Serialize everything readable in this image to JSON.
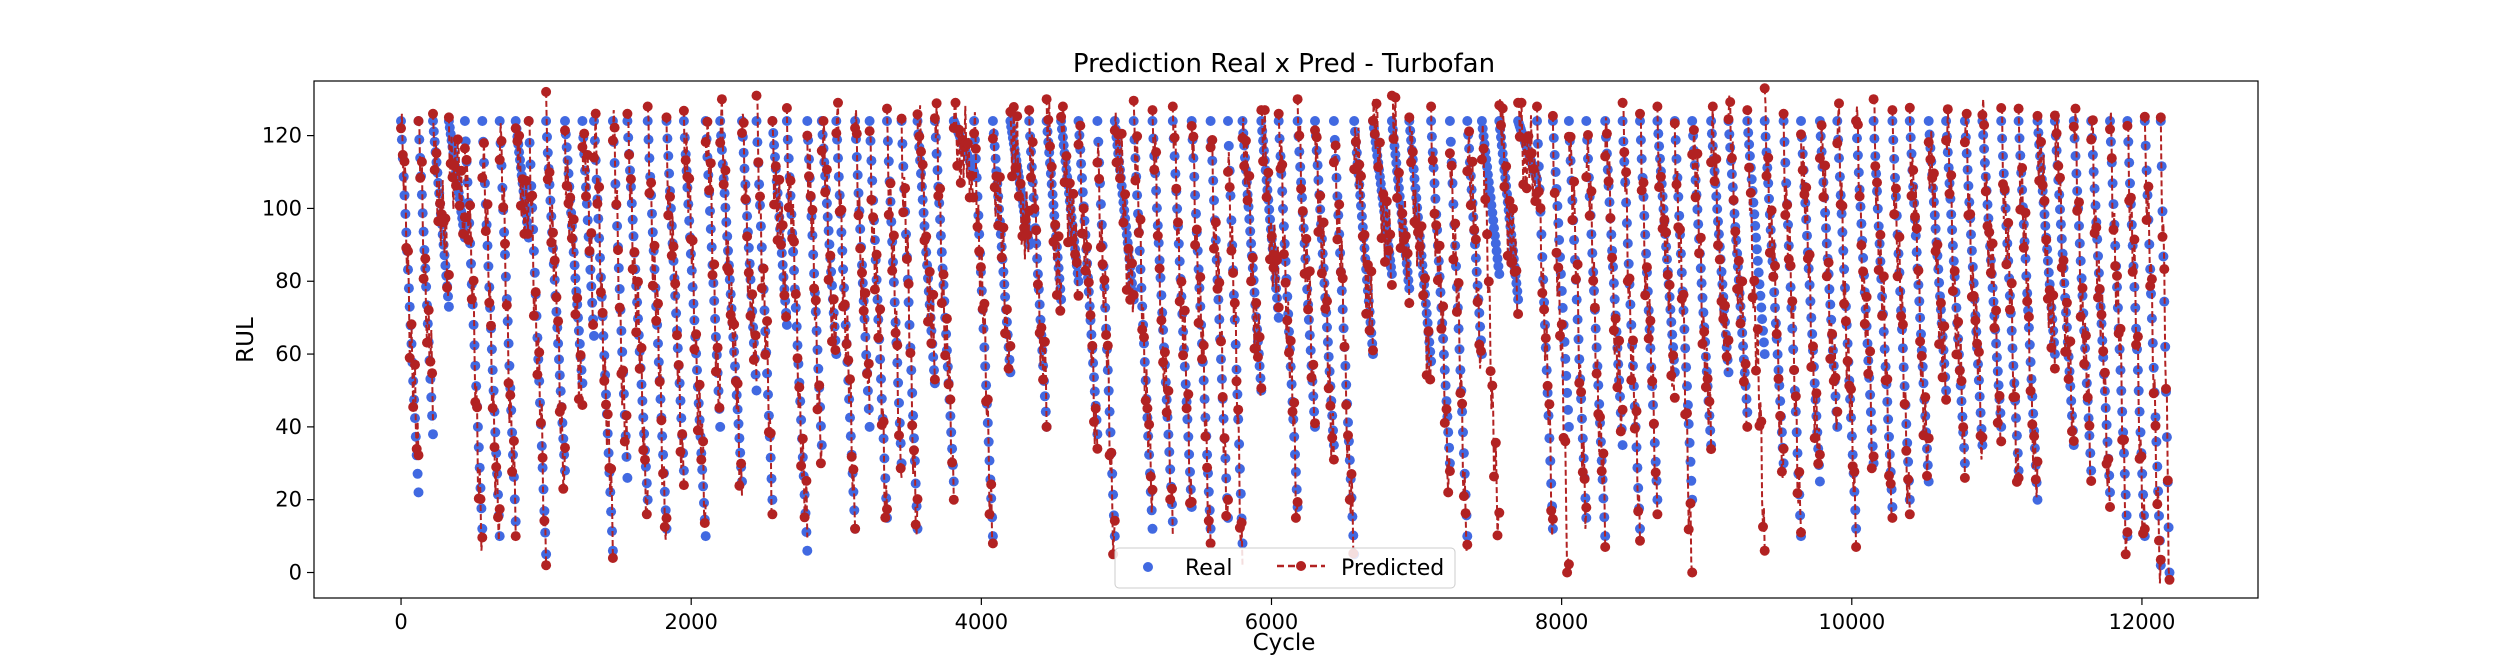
{
  "chart_data": {
    "type": "scatter",
    "title": "Prediction Real x Pred - Turbofan",
    "xlabel": "Cycle",
    "ylabel": "RUL",
    "xlim": [
      -600,
      12800
    ],
    "ylim": [
      -7,
      135
    ],
    "xticks": [
      0,
      2000,
      4000,
      6000,
      8000,
      10000,
      12000
    ],
    "yticks": [
      0,
      20,
      40,
      60,
      80,
      100,
      120
    ],
    "xtick_labels": [
      "0",
      "2000",
      "4000",
      "6000",
      "8000",
      "10000",
      "12000"
    ],
    "ytick_labels": [
      "0",
      "20",
      "40",
      "60",
      "80",
      "100",
      "120"
    ],
    "grid": false,
    "legend": {
      "placement": "bottom-center",
      "ncol": 2
    },
    "colors": {
      "Real": "#4169e1",
      "Predicted": "#b22222"
    },
    "series": [
      {
        "name": "Real",
        "style": "markers",
        "segments": [
          [
            0,
            124,
            120,
            22
          ],
          [
            120,
            124,
            220,
            38
          ],
          [
            220,
            124,
            330,
            73
          ],
          [
            330,
            124,
            440,
            92
          ],
          [
            440,
            124,
            560,
            12
          ],
          [
            560,
            124,
            680,
            10
          ],
          [
            680,
            124,
            790,
            14
          ],
          [
            790,
            124,
            880,
            92
          ],
          [
            880,
            124,
            1000,
            5
          ],
          [
            1000,
            124,
            1130,
            28
          ],
          [
            1130,
            124,
            1250,
            52
          ],
          [
            1250,
            124,
            1330,
            65
          ],
          [
            1330,
            124,
            1460,
            6
          ],
          [
            1460,
            124,
            1560,
            26
          ],
          [
            1560,
            124,
            1700,
            20
          ],
          [
            1700,
            124,
            1830,
            12
          ],
          [
            1830,
            124,
            1950,
            28
          ],
          [
            1950,
            124,
            2100,
            10
          ],
          [
            2100,
            124,
            2200,
            40
          ],
          [
            2200,
            124,
            2350,
            25
          ],
          [
            2350,
            124,
            2450,
            50
          ],
          [
            2450,
            124,
            2560,
            20
          ],
          [
            2560,
            124,
            2660,
            68
          ],
          [
            2660,
            124,
            2800,
            6
          ],
          [
            2800,
            124,
            2900,
            35
          ],
          [
            2900,
            124,
            3000,
            60
          ],
          [
            3000,
            124,
            3130,
            12
          ],
          [
            3130,
            124,
            3230,
            40
          ],
          [
            3230,
            124,
            3350,
            15
          ],
          [
            3350,
            124,
            3450,
            30
          ],
          [
            3450,
            124,
            3560,
            12
          ],
          [
            3560,
            124,
            3680,
            52
          ],
          [
            3680,
            124,
            3810,
            25
          ],
          [
            3810,
            124,
            3950,
            110
          ],
          [
            3950,
            124,
            4080,
            10
          ],
          [
            4080,
            124,
            4200,
            55
          ],
          [
            4200,
            124,
            4330,
            90
          ],
          [
            4330,
            124,
            4450,
            40
          ],
          [
            4450,
            124,
            4550,
            75
          ],
          [
            4550,
            124,
            4670,
            80
          ],
          [
            4670,
            124,
            4800,
            38
          ],
          [
            4800,
            124,
            4920,
            10
          ],
          [
            4920,
            124,
            5050,
            75
          ],
          [
            5050,
            124,
            5180,
            12
          ],
          [
            5180,
            124,
            5320,
            14
          ],
          [
            5320,
            124,
            5450,
            18
          ],
          [
            5450,
            124,
            5580,
            12
          ],
          [
            5580,
            124,
            5700,
            15
          ],
          [
            5700,
            124,
            5800,
            8
          ],
          [
            5800,
            124,
            5930,
            50
          ],
          [
            5930,
            124,
            6050,
            70
          ],
          [
            6050,
            124,
            6180,
            18
          ],
          [
            6180,
            124,
            6300,
            40
          ],
          [
            6300,
            124,
            6430,
            35
          ],
          [
            6430,
            124,
            6570,
            5
          ],
          [
            6570,
            124,
            6700,
            60
          ],
          [
            6700,
            124,
            6830,
            82
          ],
          [
            6830,
            124,
            6950,
            78
          ],
          [
            6950,
            124,
            7100,
            58
          ],
          [
            7100,
            124,
            7230,
            30
          ],
          [
            7230,
            124,
            7350,
            10
          ],
          [
            7350,
            124,
            7450,
            60
          ],
          [
            7450,
            124,
            7570,
            82
          ],
          [
            7570,
            124,
            7700,
            75
          ],
          [
            7700,
            124,
            7830,
            108
          ],
          [
            7830,
            124,
            7940,
            12
          ],
          [
            7940,
            124,
            8050,
            40
          ],
          [
            8050,
            124,
            8170,
            15
          ],
          [
            8170,
            124,
            8300,
            10
          ],
          [
            8300,
            124,
            8420,
            35
          ],
          [
            8420,
            124,
            8540,
            12
          ],
          [
            8540,
            124,
            8660,
            20
          ],
          [
            8660,
            124,
            8780,
            55
          ],
          [
            8780,
            124,
            8900,
            20
          ],
          [
            8900,
            124,
            9030,
            35
          ],
          [
            9030,
            124,
            9150,
            55
          ],
          [
            9150,
            124,
            9280,
            44
          ],
          [
            9280,
            124,
            9400,
            60
          ],
          [
            9400,
            124,
            9530,
            30
          ],
          [
            9530,
            124,
            9650,
            10
          ],
          [
            9650,
            124,
            9780,
            25
          ],
          [
            9780,
            124,
            9900,
            40
          ],
          [
            9900,
            124,
            10030,
            12
          ],
          [
            10030,
            124,
            10150,
            30
          ],
          [
            10150,
            124,
            10280,
            18
          ],
          [
            10280,
            124,
            10400,
            20
          ],
          [
            10400,
            124,
            10530,
            25
          ],
          [
            10530,
            124,
            10650,
            50
          ],
          [
            10650,
            124,
            10780,
            30
          ],
          [
            10780,
            124,
            10900,
            35
          ],
          [
            10900,
            124,
            11030,
            40
          ],
          [
            11030,
            124,
            11150,
            28
          ],
          [
            11150,
            124,
            11280,
            20
          ],
          [
            11280,
            124,
            11400,
            60
          ],
          [
            11400,
            124,
            11530,
            35
          ],
          [
            11530,
            124,
            11650,
            28
          ],
          [
            11650,
            124,
            11780,
            22
          ],
          [
            11780,
            124,
            11900,
            10
          ],
          [
            11900,
            124,
            12020,
            10
          ],
          [
            12020,
            124,
            12130,
            2
          ],
          [
            12130,
            124,
            12190,
            0
          ]
        ]
      },
      {
        "name": "Predicted",
        "style": "dashed-line-with-markers",
        "segments": [
          [
            0,
            122,
            120,
            25
          ],
          [
            120,
            120,
            220,
            43
          ],
          [
            220,
            122,
            330,
            78
          ],
          [
            330,
            121,
            440,
            95
          ],
          [
            440,
            125,
            560,
            8
          ],
          [
            560,
            123,
            680,
            5
          ],
          [
            680,
            122,
            790,
            12
          ],
          [
            790,
            118,
            880,
            95
          ],
          [
            880,
            120,
            1000,
            4
          ],
          [
            1000,
            128,
            1130,
            25
          ],
          [
            1130,
            121,
            1250,
            48
          ],
          [
            1250,
            127,
            1330,
            70
          ],
          [
            1330,
            126,
            1460,
            6
          ],
          [
            1460,
            123,
            1560,
            23
          ],
          [
            1560,
            122,
            1700,
            18
          ],
          [
            1700,
            124,
            1830,
            11
          ],
          [
            1830,
            121,
            1950,
            26
          ],
          [
            1950,
            129,
            2100,
            10
          ],
          [
            2100,
            127,
            2200,
            45
          ],
          [
            2200,
            126,
            2350,
            23
          ],
          [
            2350,
            122,
            2450,
            47
          ],
          [
            2450,
            127,
            2560,
            18
          ],
          [
            2560,
            120,
            2660,
            71
          ],
          [
            2660,
            124,
            2800,
            5
          ],
          [
            2800,
            122,
            2900,
            32
          ],
          [
            2900,
            121,
            3000,
            58
          ],
          [
            3000,
            125,
            3130,
            14
          ],
          [
            3130,
            123,
            3230,
            42
          ],
          [
            3230,
            119,
            3350,
            17
          ],
          [
            3350,
            124,
            3450,
            28
          ],
          [
            3450,
            122,
            3560,
            10
          ],
          [
            3560,
            125,
            3680,
            55
          ],
          [
            3680,
            126,
            3810,
            22
          ],
          [
            3810,
            125,
            3950,
            105
          ],
          [
            3950,
            124,
            4080,
            10
          ],
          [
            4080,
            121,
            4200,
            58
          ],
          [
            4200,
            125,
            4330,
            88
          ],
          [
            4330,
            123,
            4450,
            42
          ],
          [
            4450,
            126,
            4550,
            72
          ],
          [
            4550,
            124,
            4670,
            78
          ],
          [
            4670,
            122,
            4800,
            36
          ],
          [
            4800,
            120,
            4920,
            7
          ],
          [
            4920,
            126,
            5050,
            72
          ],
          [
            5050,
            127,
            5180,
            14
          ],
          [
            5180,
            123,
            5320,
            12
          ],
          [
            5320,
            124,
            5450,
            20
          ],
          [
            5450,
            122,
            5580,
            10
          ],
          [
            5580,
            125,
            5700,
            16
          ],
          [
            5700,
            121,
            5800,
            4
          ],
          [
            5800,
            124,
            5930,
            48
          ],
          [
            5930,
            123,
            6050,
            73
          ],
          [
            6050,
            122,
            6180,
            16
          ],
          [
            6180,
            126,
            6300,
            43
          ],
          [
            6300,
            124,
            6430,
            33
          ],
          [
            6430,
            125,
            6570,
            3
          ],
          [
            6570,
            123,
            6700,
            63
          ],
          [
            6700,
            126,
            6830,
            80
          ],
          [
            6830,
            127,
            6950,
            76
          ],
          [
            6950,
            121,
            7100,
            55
          ],
          [
            7100,
            124,
            7230,
            24
          ],
          [
            7230,
            122,
            7350,
            8
          ],
          [
            7350,
            125,
            7450,
            58
          ],
          [
            7450,
            124,
            7570,
            2
          ],
          [
            7570,
            126,
            7700,
            73
          ],
          [
            7700,
            125,
            7830,
            104
          ],
          [
            7830,
            124,
            7940,
            11
          ],
          [
            7940,
            123,
            8050,
            0
          ],
          [
            8050,
            130,
            8170,
            14
          ],
          [
            8170,
            123,
            8300,
            9
          ],
          [
            8300,
            121,
            8420,
            33
          ],
          [
            8420,
            125,
            8540,
            8
          ],
          [
            8540,
            122,
            8660,
            18
          ],
          [
            8660,
            124,
            8780,
            50
          ],
          [
            8780,
            125,
            8900,
            2
          ],
          [
            8900,
            126,
            9030,
            32
          ],
          [
            9030,
            124,
            9150,
            52
          ],
          [
            9150,
            127,
            9280,
            42
          ],
          [
            9280,
            123,
            9400,
            8
          ],
          [
            9400,
            129,
            9530,
            28
          ],
          [
            9530,
            122,
            9650,
            13
          ],
          [
            9650,
            124,
            9780,
            22
          ],
          [
            9780,
            123,
            9900,
            38
          ],
          [
            9900,
            125,
            10030,
            9
          ],
          [
            10030,
            124,
            10150,
            28
          ],
          [
            10150,
            126,
            10280,
            17
          ],
          [
            10280,
            123,
            10400,
            18
          ],
          [
            10400,
            125,
            10530,
            22
          ],
          [
            10530,
            121,
            10650,
            48
          ],
          [
            10650,
            124,
            10780,
            28
          ],
          [
            10780,
            122,
            10900,
            33
          ],
          [
            10900,
            126,
            11030,
            38
          ],
          [
            11030,
            125,
            11150,
            26
          ],
          [
            11150,
            124,
            11280,
            18
          ],
          [
            11280,
            123,
            11400,
            58
          ],
          [
            11400,
            125,
            11530,
            33
          ],
          [
            11530,
            124,
            11650,
            26
          ],
          [
            11650,
            122,
            11780,
            20
          ],
          [
            11780,
            125,
            11900,
            7
          ],
          [
            11900,
            124,
            12020,
            8
          ],
          [
            12020,
            123,
            12130,
            -1
          ],
          [
            12130,
            121,
            12190,
            0
          ]
        ]
      }
    ]
  }
}
